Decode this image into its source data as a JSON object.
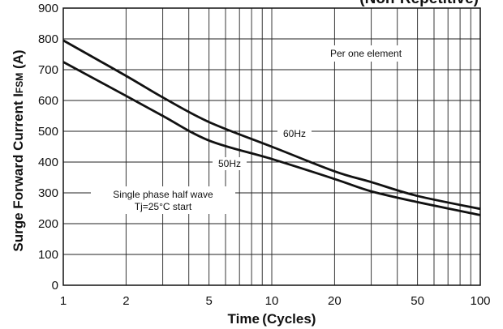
{
  "chart_data": {
    "type": "line",
    "title_partial": "(Non-Repetitive)",
    "xlabel": "Time (Cycles)",
    "ylabel": "Surge Forward Current I",
    "ylabel_sub": "FSM",
    "ylabel_unit": " (A)",
    "x_scale": "log",
    "xlim": [
      1,
      100
    ],
    "ylim": [
      0,
      900
    ],
    "x_ticks": [
      1,
      2,
      5,
      10,
      20,
      50,
      100
    ],
    "x_minor_ticks": [
      3,
      4,
      6,
      7,
      8,
      9,
      30,
      40,
      60,
      70,
      80,
      90
    ],
    "y_ticks": [
      0,
      100,
      200,
      300,
      400,
      500,
      600,
      700,
      800,
      900
    ],
    "grid": true,
    "annotations": [
      "Per one element",
      "Single phase half wave",
      "Tj=25°C start"
    ],
    "series": [
      {
        "name": "60Hz",
        "x": [
          1,
          2,
          3,
          5,
          10,
          20,
          30,
          50,
          100
        ],
        "values": [
          795,
          680,
          610,
          530,
          450,
          370,
          335,
          290,
          248
        ]
      },
      {
        "name": "50Hz",
        "x": [
          1,
          2,
          3,
          5,
          10,
          20,
          30,
          50,
          100
        ],
        "values": [
          725,
          615,
          550,
          470,
          410,
          345,
          305,
          270,
          228
        ]
      }
    ]
  }
}
